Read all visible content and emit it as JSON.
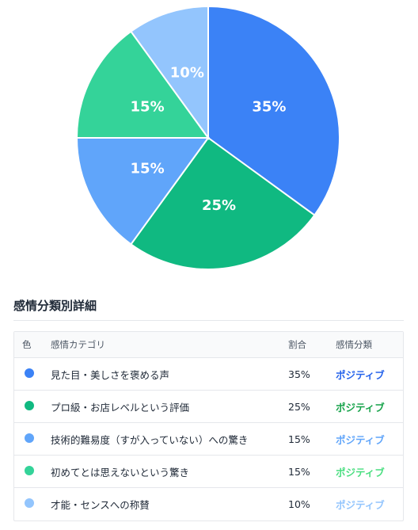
{
  "chart_data": {
    "type": "pie",
    "slices": [
      {
        "label": "見た目・美しさを褒める声",
        "value": 35,
        "color": "#3b82f6",
        "display": "35%"
      },
      {
        "label": "プロ級・お店レベルという評価",
        "value": 25,
        "color": "#10b981",
        "display": "25%"
      },
      {
        "label": "技術的難易度（すが入っていない）への驚き",
        "value": 15,
        "color": "#60a5fa",
        "display": "15%"
      },
      {
        "label": "初めてとは思えないという驚き",
        "value": 15,
        "color": "#34d399",
        "display": "15%"
      },
      {
        "label": "才能・センスへの称賛",
        "value": 10,
        "color": "#93c5fd",
        "display": "10%"
      }
    ]
  },
  "section": {
    "title": "感情分類別詳細"
  },
  "table": {
    "headers": {
      "color": "色",
      "category": "感情カテゴリ",
      "ratio": "割合",
      "classification": "感情分類"
    },
    "rows": [
      {
        "color": "#3b82f6",
        "category": "見た目・美しさを褒める声",
        "ratio": "35%",
        "classification": "ポジティブ",
        "cls_color": "#2563eb"
      },
      {
        "color": "#10b981",
        "category": "プロ級・お店レベルという評価",
        "ratio": "25%",
        "classification": "ポジティブ",
        "cls_color": "#16a34a"
      },
      {
        "color": "#60a5fa",
        "category": "技術的難易度（すが入っていない）への驚き",
        "ratio": "15%",
        "classification": "ポジティブ",
        "cls_color": "#60a5fa"
      },
      {
        "color": "#34d399",
        "category": "初めてとは思えないという驚き",
        "ratio": "15%",
        "classification": "ポジティブ",
        "cls_color": "#4ade80"
      },
      {
        "color": "#93c5fd",
        "category": "才能・センスへの称賛",
        "ratio": "10%",
        "classification": "ポジティブ",
        "cls_color": "#93c5fd"
      }
    ]
  }
}
